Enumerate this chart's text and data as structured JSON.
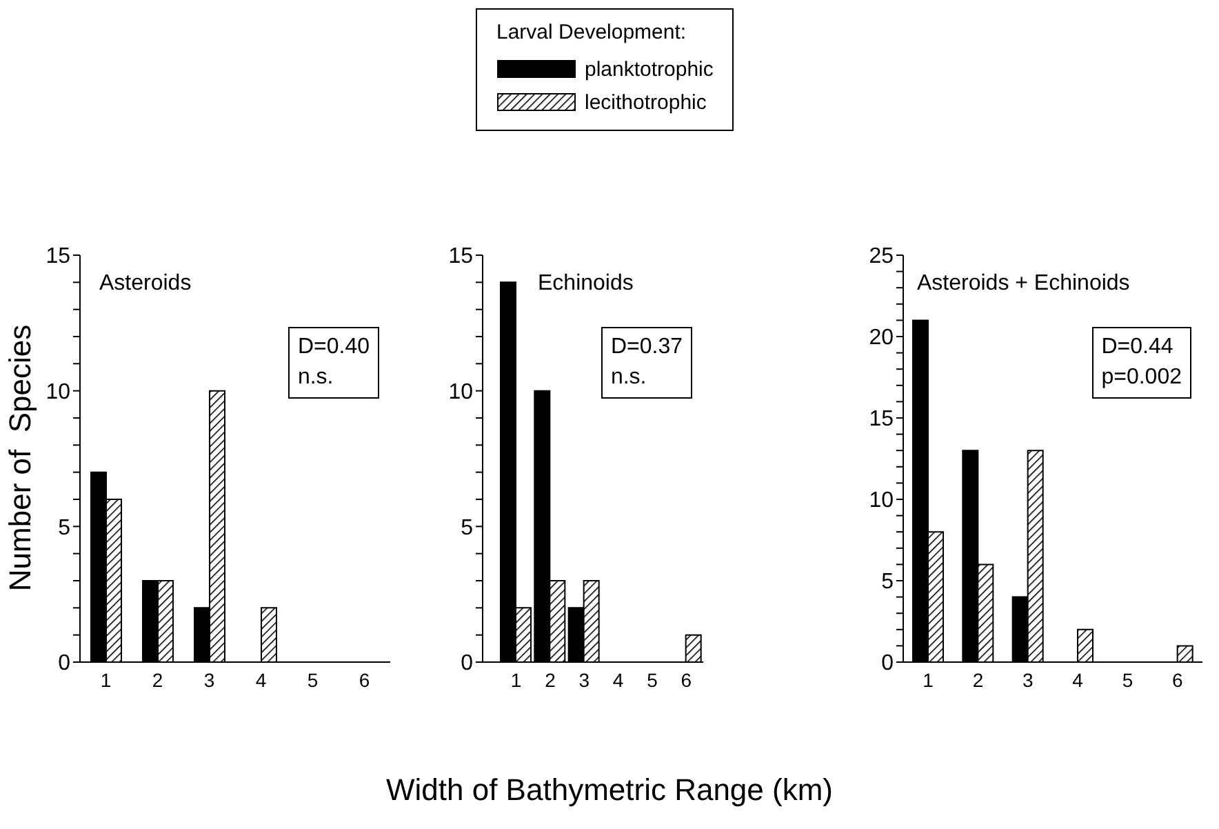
{
  "chart_data": [
    {
      "type": "bar",
      "title": "Asteroids",
      "legend_title": "Larval Development:",
      "legend": "top",
      "ylabel": "Number of  Species",
      "categories": [
        "1",
        "2",
        "3",
        "4",
        "5",
        "6"
      ],
      "series": [
        {
          "name": "planktotrophic",
          "color": "#000000",
          "values": [
            7,
            3,
            2,
            0,
            0,
            0
          ]
        },
        {
          "name": "lecithotrophic",
          "color": "#000000",
          "values": [
            6,
            3,
            10,
            2,
            0,
            0
          ]
        }
      ],
      "ylim": [
        0,
        15
      ],
      "yticks": [
        0,
        {
          "value": 1,
          "label": null
        },
        {
          "value": 2,
          "label": null
        },
        {
          "value": 3,
          "label": null
        },
        {
          "value": 4,
          "label": null
        },
        5,
        {
          "value": 6,
          "label": null
        },
        {
          "value": 7,
          "label": null
        },
        {
          "value": 8,
          "label": null
        },
        {
          "value": 9,
          "label": null
        },
        10,
        {
          "value": 11,
          "label": null
        },
        {
          "value": 12,
          "label": null
        },
        {
          "value": 13,
          "label": null
        },
        {
          "value": 14,
          "label": null
        },
        15
      ],
      "annotations": [
        "D=0.40",
        "n.s."
      ]
    },
    {
      "type": "bar",
      "title": "Echinoids",
      "xlabel": "Width of Bathymetric Range (km)",
      "categories": [
        "1",
        "2",
        "3",
        "4",
        "5",
        "6"
      ],
      "series": [
        {
          "color": "#000000",
          "values": [
            14,
            10,
            2,
            0,
            0,
            0
          ]
        },
        {
          "color": "#000000",
          "values": [
            2,
            3,
            3,
            0,
            0,
            1
          ]
        }
      ],
      "ylim": [
        0,
        15
      ],
      "yticks": [
        0,
        {
          "value": 1,
          "label": null
        },
        {
          "value": 2,
          "label": null
        },
        {
          "value": 3,
          "label": null
        },
        {
          "value": 4,
          "label": null
        },
        5,
        {
          "value": 6,
          "label": null
        },
        {
          "value": 7,
          "label": null
        },
        {
          "value": 8,
          "label": null
        },
        {
          "value": 9,
          "label": null
        },
        10,
        {
          "value": 11,
          "label": null
        },
        {
          "value": 12,
          "label": null
        },
        {
          "value": 13,
          "label": null
        },
        {
          "value": 14,
          "label": null
        },
        15
      ],
      "annotations": [
        "D=0.37",
        "n.s."
      ]
    },
    {
      "type": "bar",
      "title": "Asteroids + Echinoids",
      "categories": [
        "1",
        "2",
        "3",
        "4",
        "5",
        "6"
      ],
      "series": [
        {
          "color": "#000000",
          "values": [
            21,
            13,
            4,
            0,
            0,
            0
          ]
        },
        {
          "color": "#000000",
          "values": [
            8,
            6,
            13,
            2,
            0,
            1
          ]
        }
      ],
      "ylim": [
        0,
        25
      ],
      "yticks": [
        0,
        {
          "value": 1,
          "label": null
        },
        {
          "value": 2,
          "label": null
        },
        {
          "value": 3,
          "label": null
        },
        {
          "value": 4,
          "label": null
        },
        5,
        {
          "value": 6,
          "label": null
        },
        {
          "value": 7,
          "label": null
        },
        {
          "value": 8,
          "label": null
        },
        {
          "value": 9,
          "label": null
        },
        10,
        {
          "value": 11,
          "label": null
        },
        {
          "value": 12,
          "label": null
        },
        {
          "value": 13,
          "label": null
        },
        {
          "value": 14,
          "label": null
        },
        15,
        {
          "value": 16,
          "label": null
        },
        {
          "value": 17,
          "label": null
        },
        {
          "value": 18,
          "label": null
        },
        {
          "value": 19,
          "label": null
        },
        20,
        {
          "value": 21,
          "label": null
        },
        {
          "value": 22,
          "label": null
        },
        {
          "value": 23,
          "label": null
        },
        {
          "value": 24,
          "label": null
        },
        25
      ],
      "annotations": [
        "D=0.44",
        "p=0.002"
      ]
    }
  ]
}
